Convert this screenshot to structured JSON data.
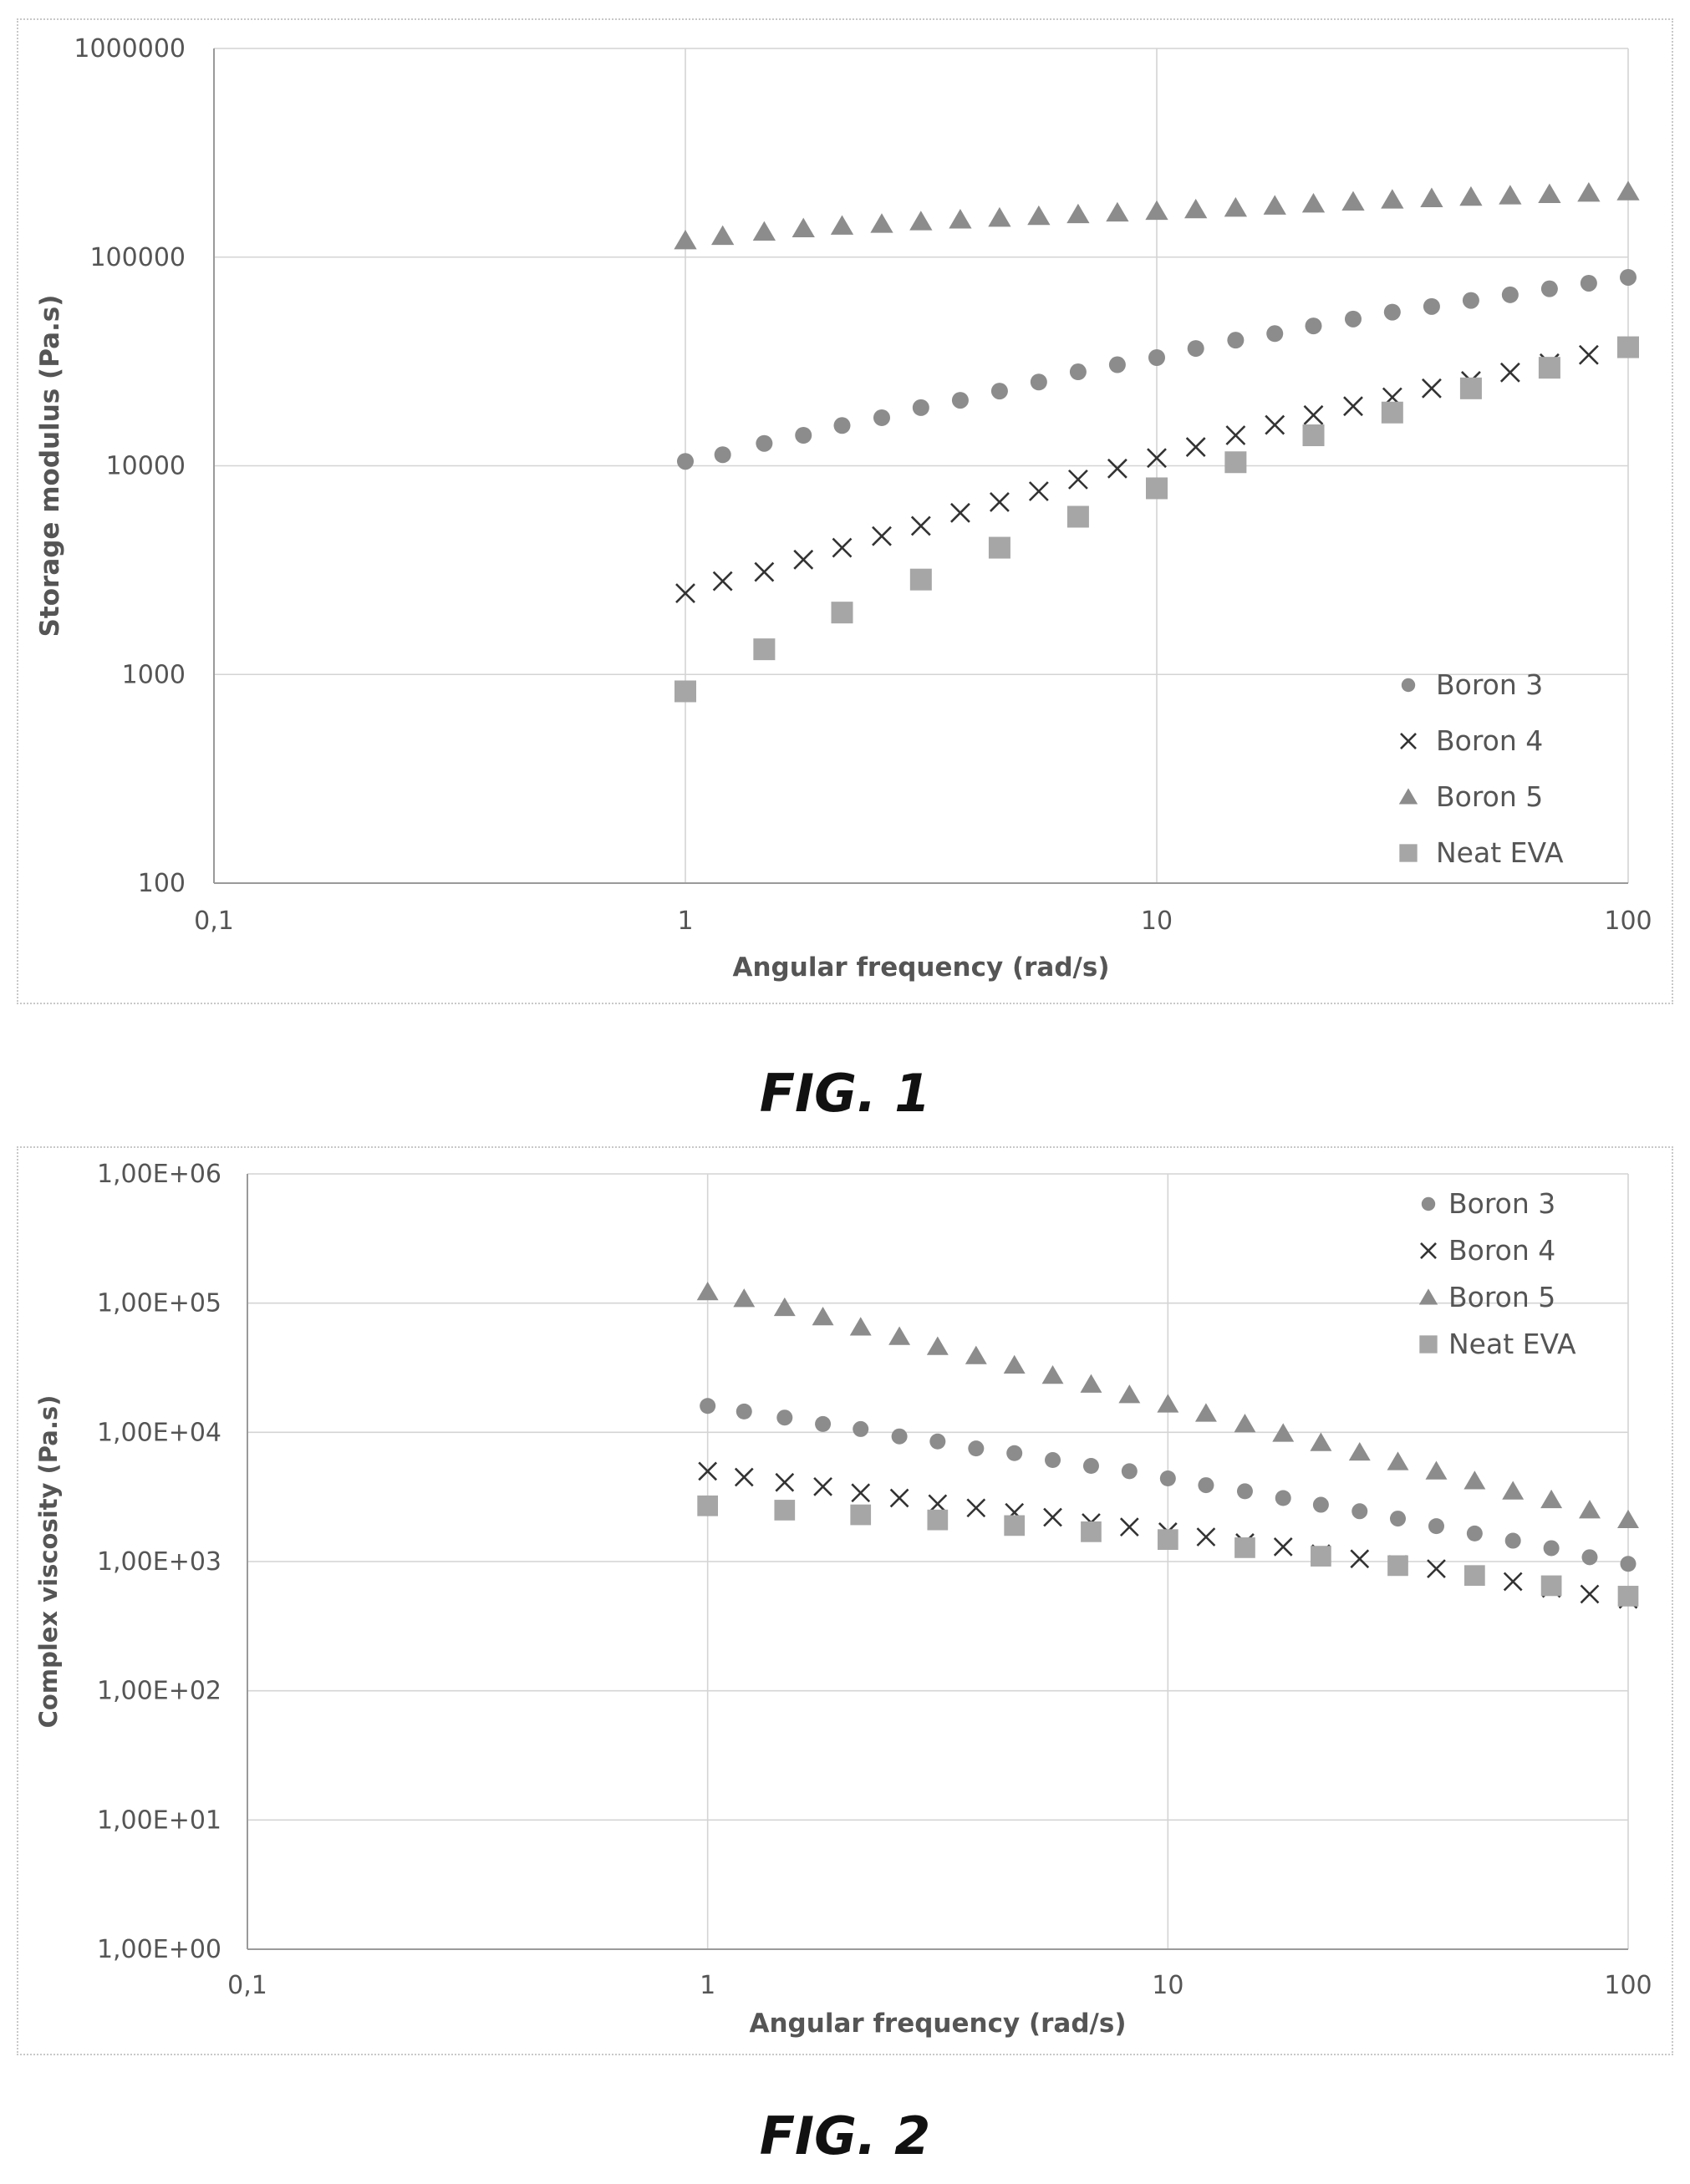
{
  "figures": [
    {
      "label": "FIG. 1",
      "chart_data": {
        "type": "scatter",
        "title": "",
        "xlabel": "Angular frequency (rad/s)",
        "ylabel": "Storage modulus (Pa.s)",
        "x_scale": "log",
        "y_scale": "log",
        "xlim": [
          0.1,
          100
        ],
        "ylim": [
          100,
          1000000
        ],
        "x_ticks": [
          "0,1",
          "1",
          "10",
          "100"
        ],
        "y_ticks": [
          "100",
          "1000",
          "10000",
          "100000",
          "1000000"
        ],
        "grid": true,
        "legend_position": "bottom-right",
        "series": [
          {
            "name": "Boron 3",
            "marker": "circle",
            "color": "#8c8c8c",
            "x": [
              1,
              1.2,
              1.47,
              1.78,
              2.15,
              2.61,
              3.16,
              3.83,
              4.64,
              5.62,
              6.81,
              8.25,
              10,
              12.1,
              14.7,
              17.8,
              21.5,
              26.1,
              31.6,
              38.3,
              46.4,
              56.2,
              68.1,
              82.5,
              100
            ],
            "y": [
              10500,
              11300,
              12800,
              14000,
              15600,
              17000,
              19000,
              20600,
              22800,
              25200,
              28200,
              30500,
              33000,
              36500,
              40000,
              43000,
              46800,
              50500,
              54500,
              58000,
              62000,
              66000,
              70500,
              75000,
              80000
            ]
          },
          {
            "name": "Boron 4",
            "marker": "x",
            "color": "#333333",
            "x": [
              1,
              1.2,
              1.47,
              1.78,
              2.15,
              2.61,
              3.16,
              3.83,
              4.64,
              5.62,
              6.81,
              8.25,
              10,
              12.1,
              14.7,
              17.8,
              21.5,
              26.1,
              31.6,
              38.3,
              46.4,
              56.2,
              68.1,
              82.5
            ],
            "y": [
              2450,
              2800,
              3100,
              3550,
              4050,
              4600,
              5150,
              5950,
              6700,
              7550,
              8600,
              9700,
              10900,
              12300,
              14000,
              15700,
              17500,
              19300,
              21300,
              23500,
              25500,
              28000,
              31000,
              34000
            ]
          },
          {
            "name": "Boron 5",
            "marker": "triangle",
            "color": "#8c8c8c",
            "x": [
              1,
              1.2,
              1.47,
              1.78,
              2.15,
              2.61,
              3.16,
              3.83,
              4.64,
              5.62,
              6.81,
              8.25,
              10,
              12.1,
              14.7,
              17.8,
              21.5,
              26.1,
              31.6,
              38.3,
              46.4,
              56.2,
              68.1,
              82.5,
              100
            ],
            "y": [
              120000,
              126000,
              132000,
              137000,
              141000,
              144000,
              148000,
              151000,
              154000,
              157000,
              160000,
              163000,
              166000,
              169000,
              172000,
              176000,
              180000,
              184000,
              188000,
              191000,
              194000,
              197000,
              200000,
              203000,
              206000
            ]
          },
          {
            "name": "Neat EVA",
            "marker": "square",
            "color": "#a6a6a6",
            "x": [
              1,
              1.47,
              2.15,
              3.16,
              4.64,
              6.81,
              10,
              14.7,
              21.5,
              31.6,
              46.4,
              68.1,
              100
            ],
            "y": [
              830,
              1320,
              1980,
              2850,
              4050,
              5700,
              7800,
              10400,
              14000,
              18000,
              23500,
              29500,
              37000
            ]
          }
        ]
      }
    },
    {
      "label": "FIG. 2",
      "chart_data": {
        "type": "scatter",
        "title": "",
        "xlabel": "Angular frequency (rad/s)",
        "ylabel": "Complex viscosity (Pa.s)",
        "x_scale": "log",
        "y_scale": "log",
        "xlim": [
          0.1,
          100
        ],
        "ylim": [
          1,
          1000000
        ],
        "x_ticks": [
          "0,1",
          "1",
          "10",
          "100"
        ],
        "y_ticks": [
          "1,00E+00",
          "1,00E+01",
          "1,00E+02",
          "1,00E+03",
          "1,00E+04",
          "1,00E+05",
          "1,00E+06"
        ],
        "grid": true,
        "legend_position": "top-right",
        "series": [
          {
            "name": "Boron 3",
            "marker": "circle",
            "color": "#8c8c8c",
            "x": [
              1,
              1.2,
              1.47,
              1.78,
              2.15,
              2.61,
              3.16,
              3.83,
              4.64,
              5.62,
              6.81,
              8.25,
              10,
              12.1,
              14.7,
              17.8,
              21.5,
              26.1,
              31.6,
              38.3,
              46.4,
              56.2,
              68.1,
              82.5,
              100
            ],
            "y": [
              16000,
              14500,
              13000,
              11600,
              10600,
              9300,
              8500,
              7500,
              6900,
              6100,
              5500,
              5000,
              4400,
              3900,
              3500,
              3100,
              2750,
              2450,
              2150,
              1880,
              1650,
              1450,
              1270,
              1080,
              960
            ]
          },
          {
            "name": "Boron 4",
            "marker": "x",
            "color": "#333333",
            "x": [
              1,
              1.2,
              1.47,
              1.78,
              2.15,
              2.61,
              3.16,
              3.83,
              4.64,
              5.62,
              6.81,
              8.25,
              10,
              12.1,
              14.7,
              17.8,
              21.5,
              26.1,
              31.6,
              38.3,
              46.4,
              56.2,
              68.1,
              82.5,
              100
            ],
            "y": [
              5000,
              4500,
              4100,
              3800,
              3400,
              3100,
              2800,
              2600,
              2400,
              2200,
              2000,
              1850,
              1700,
              1550,
              1400,
              1300,
              1150,
              1050,
              950,
              880,
              790,
              700,
              620,
              560,
              510
            ]
          },
          {
            "name": "Boron 5",
            "marker": "triangle",
            "color": "#8c8c8c",
            "x": [
              1,
              1.2,
              1.47,
              1.78,
              2.15,
              2.61,
              3.16,
              3.83,
              4.64,
              5.62,
              6.81,
              8.25,
              10,
              12.1,
              14.7,
              17.8,
              21.5,
              26.1,
              31.6,
              38.3,
              46.4,
              56.2,
              68.1,
              82.5,
              100
            ],
            "y": [
              122000,
              108000,
              92000,
              78000,
              65000,
              55000,
              46000,
              39000,
              33000,
              27500,
              23500,
              19500,
              16500,
              14000,
              11600,
              9800,
              8300,
              7000,
              5900,
              5000,
              4200,
              3500,
              3000,
              2500,
              2100
            ]
          },
          {
            "name": "Neat EVA",
            "marker": "square",
            "color": "#a6a6a6",
            "x": [
              1,
              1.47,
              2.15,
              3.16,
              4.64,
              6.81,
              10,
              14.7,
              21.5,
              31.6,
              46.4,
              68.1,
              100
            ],
            "y": [
              2700,
              2500,
              2300,
              2100,
              1900,
              1700,
              1480,
              1280,
              1100,
              930,
              780,
              650,
              540
            ]
          }
        ]
      }
    }
  ]
}
